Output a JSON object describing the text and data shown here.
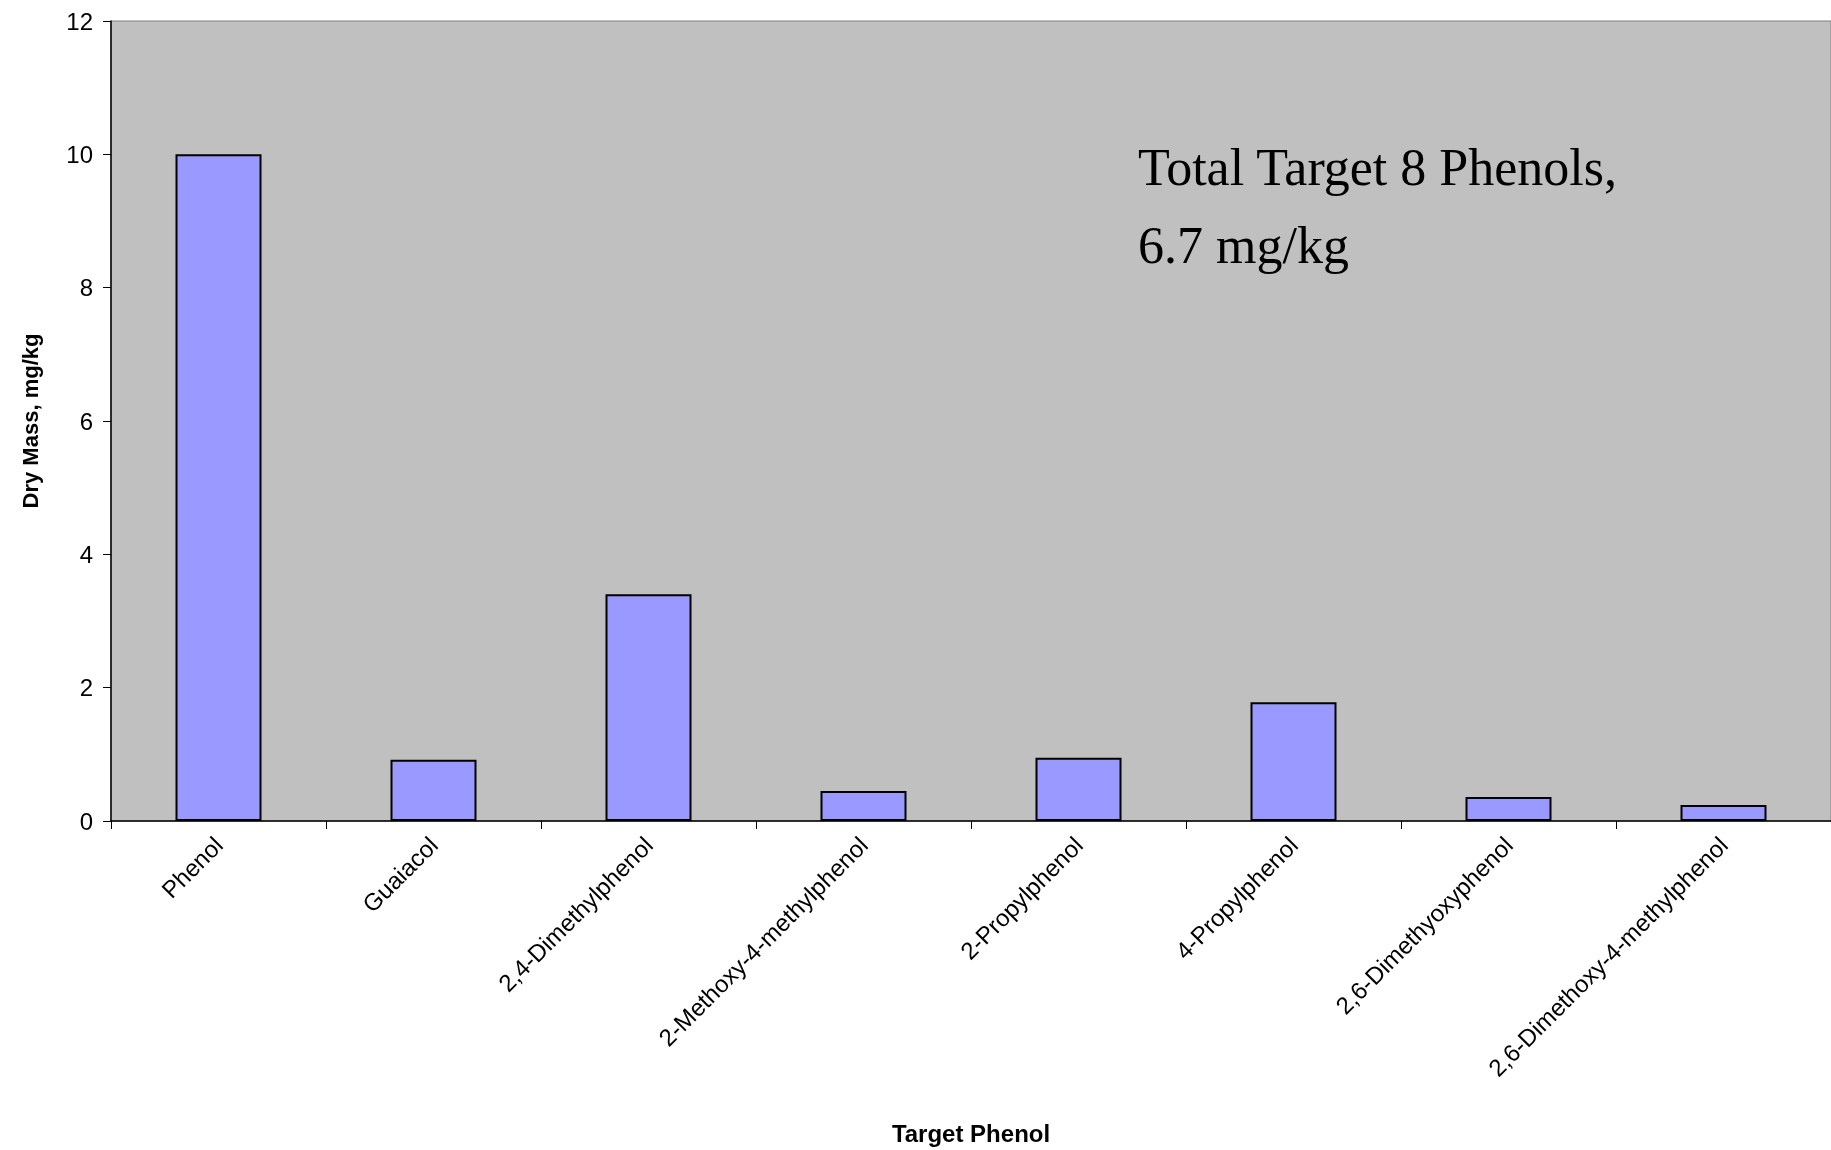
{
  "chart_data": {
    "type": "bar",
    "xlabel": "Target Phenol",
    "ylabel": "Dry Mass, mg/kg",
    "categories": [
      "Phenol",
      "Guaiacol",
      "2,4-Dimethylphenol",
      "2-Methoxy-4-methylphenol",
      "2-Propylphenol",
      "4-Propylphenol",
      "2,6-Dimethyoxyphenol",
      "2,6-Dimethoxy-4-methylphenol"
    ],
    "values": [
      10,
      0.92,
      3.4,
      0.45,
      0.95,
      1.78,
      0.36,
      0.24
    ],
    "color": "#9999ff",
    "ylim": [
      0,
      12
    ],
    "yticks": [
      0,
      2,
      4,
      6,
      8,
      10,
      12
    ],
    "grid": false,
    "annotations": [
      "Total Target 8 Phenols,\n6.7 mg/kg"
    ]
  }
}
